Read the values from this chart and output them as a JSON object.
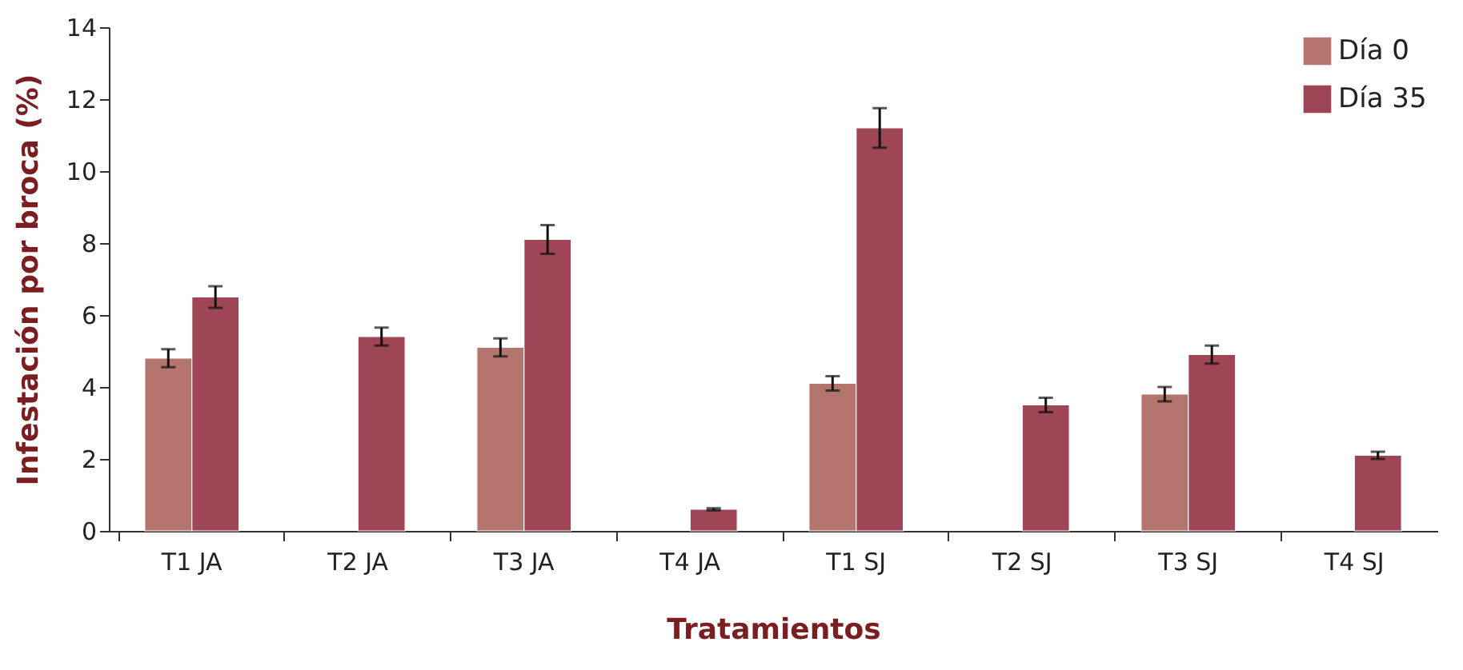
{
  "chart_data": {
    "type": "bar",
    "xlabel": "Tratamientos",
    "ylabel": "Infestación por broca (%)",
    "categories": [
      "T1 JA",
      "T2 JA",
      "T3 JA",
      "T4 JA",
      "T1 SJ",
      "T2 SJ",
      "T3 SJ",
      "T4 SJ"
    ],
    "series": [
      {
        "name": "Día 0",
        "color": "#b4756f",
        "values": [
          4.8,
          null,
          5.1,
          null,
          4.1,
          null,
          3.8,
          null
        ],
        "errors": [
          0.25,
          null,
          0.25,
          null,
          0.2,
          null,
          0.2,
          null
        ]
      },
      {
        "name": "Día 35",
        "color": "#9e4656",
        "values": [
          6.5,
          5.4,
          8.1,
          0.6,
          11.2,
          3.5,
          4.9,
          2.1
        ],
        "errors": [
          0.3,
          0.25,
          0.4,
          0.03,
          0.55,
          0.2,
          0.25,
          0.1
        ]
      }
    ],
    "ylim": [
      0,
      14
    ],
    "yticks": [
      0,
      2,
      4,
      6,
      8,
      10,
      12,
      14
    ],
    "grid": false,
    "legend": "top right"
  }
}
